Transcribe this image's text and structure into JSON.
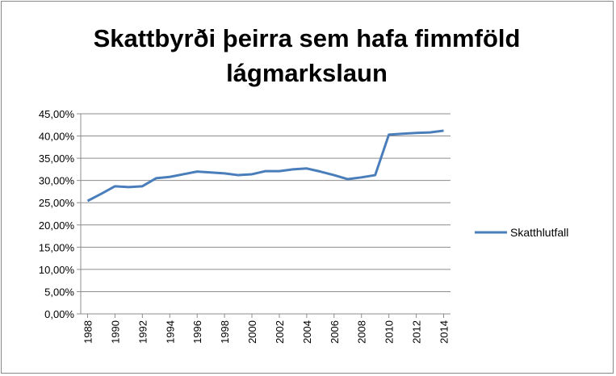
{
  "chart_data": {
    "type": "line",
    "title": "Skattbyrði þeirra sem hafa fimmföld lágmarkslaun",
    "x": [
      1988,
      1989,
      1990,
      1991,
      1992,
      1993,
      1994,
      1995,
      1996,
      1997,
      1998,
      1999,
      2000,
      2001,
      2002,
      2003,
      2004,
      2005,
      2006,
      2007,
      2008,
      2009,
      2010,
      2011,
      2012,
      2013,
      2014
    ],
    "series": [
      {
        "name": "Skatthlutfall",
        "color": "#4a7ebb",
        "values": [
          25.4,
          27.0,
          28.7,
          28.5,
          28.7,
          30.5,
          30.8,
          31.4,
          32.0,
          31.8,
          31.6,
          31.2,
          31.4,
          32.1,
          32.1,
          32.5,
          32.7,
          32.0,
          31.2,
          30.3,
          30.7,
          31.2,
          40.3,
          40.5,
          40.7,
          40.8,
          41.2
        ]
      }
    ],
    "xlim": [
      1987.5,
      2014.5
    ],
    "xticks": [
      1988,
      1990,
      1992,
      1994,
      1996,
      1998,
      2000,
      2002,
      2004,
      2006,
      2008,
      2010,
      2012,
      2014
    ],
    "ylim": [
      0,
      45
    ],
    "yticks": [
      {
        "value": 0,
        "label": "0,00%"
      },
      {
        "value": 5,
        "label": "5,00%"
      },
      {
        "value": 10,
        "label": "10,00%"
      },
      {
        "value": 15,
        "label": "15,00%"
      },
      {
        "value": 20,
        "label": "20,00%"
      },
      {
        "value": 25,
        "label": "25,00%"
      },
      {
        "value": 30,
        "label": "30,00%"
      },
      {
        "value": 35,
        "label": "35,00%"
      },
      {
        "value": 40,
        "label": "40,00%"
      },
      {
        "value": 45,
        "label": "45,00%"
      }
    ],
    "grid": true,
    "legend": "right"
  }
}
